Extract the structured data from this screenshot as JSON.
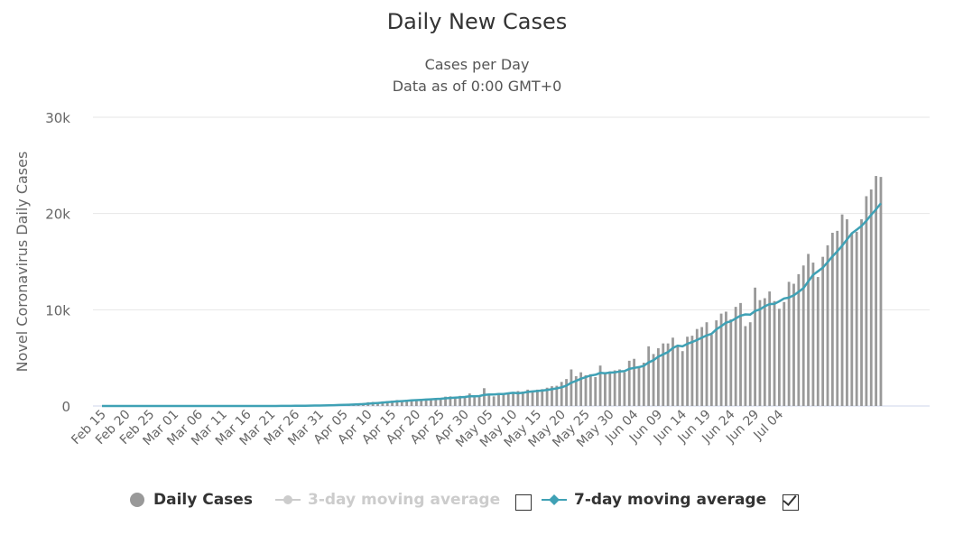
{
  "chart_data": {
    "type": "bar",
    "title": "Daily New Cases",
    "subtitle": [
      "Cases per Day",
      "Data as of 0:00 GMT+0"
    ],
    "ylabel": "Novel Coronavirus Daily Cases",
    "xlabel": "",
    "ylim": [
      0,
      30000
    ],
    "yticks": [
      0,
      10000,
      20000,
      30000
    ],
    "ytick_labels": [
      "0",
      "10k",
      "20k",
      "30k"
    ],
    "grid": true,
    "legend_position": "bottom",
    "x_start_date": "Feb 15",
    "x_tick_labels": [
      "Feb 15",
      "Feb 20",
      "Feb 25",
      "Mar 01",
      "Mar 06",
      "Mar 11",
      "Mar 16",
      "Mar 21",
      "Mar 26",
      "Mar 31",
      "Apr 05",
      "Apr 10",
      "Apr 15",
      "Apr 20",
      "Apr 25",
      "Apr 30",
      "May 05",
      "May 10",
      "May 15",
      "May 20",
      "May 25",
      "May 30",
      "Jun 04",
      "Jun 09",
      "Jun 14",
      "Jun 19",
      "Jun 24",
      "Jun 29",
      "Jul 04"
    ],
    "series": [
      {
        "name": "Daily Cases",
        "type": "bar",
        "color": "#999999",
        "visible": true,
        "values": [
          0,
          0,
          0,
          0,
          0,
          0,
          0,
          0,
          0,
          0,
          0,
          0,
          0,
          0,
          0,
          0,
          0,
          0,
          0,
          0,
          0,
          0,
          0,
          0,
          0,
          0,
          0,
          0,
          0,
          0,
          0,
          0,
          0,
          0,
          0,
          10,
          10,
          20,
          20,
          30,
          30,
          40,
          50,
          60,
          70,
          80,
          90,
          110,
          130,
          150,
          170,
          190,
          220,
          250,
          300,
          390,
          420,
          380,
          480,
          510,
          560,
          620,
          580,
          650,
          650,
          700,
          730,
          760,
          790,
          800,
          820,
          970,
          1000,
          900,
          1050,
          1000,
          1300,
          900,
          1100,
          1850,
          1200,
          1000,
          1300,
          1350,
          1400,
          1450,
          1550,
          1500,
          1700,
          1600,
          1700,
          1750,
          1900,
          2050,
          2100,
          2500,
          2800,
          3800,
          3100,
          3500,
          3200,
          3300,
          3000,
          4200,
          3500,
          3600,
          3700,
          3800,
          3500,
          4700,
          4900,
          4100,
          4500,
          6200,
          5400,
          6000,
          6500,
          6500,
          7100,
          6200,
          5700,
          7200,
          7300,
          8000,
          8200,
          8700,
          7400,
          8900,
          9600,
          9800,
          9000,
          10300,
          10700,
          8300,
          8700,
          12300,
          11000,
          11200,
          11900,
          10900,
          10100,
          10800,
          12900,
          12700,
          13700,
          14600,
          15800,
          14900,
          13400,
          15500,
          16700,
          18000,
          18200,
          19900,
          19400,
          17900,
          18100,
          19400,
          21800,
          22500,
          23900,
          23800
        ]
      },
      {
        "name": "3-day moving average",
        "type": "line",
        "color": "#cccccc",
        "visible": false
      },
      {
        "name": "7-day moving average",
        "type": "line",
        "color": "#3fa1b5",
        "visible": true
      }
    ]
  },
  "legend": {
    "daily_cases_label": "Daily Cases",
    "ma3_label": "3-day moving average",
    "ma7_label": "7-day moving average",
    "ma3_checked": false,
    "ma7_checked": true
  }
}
